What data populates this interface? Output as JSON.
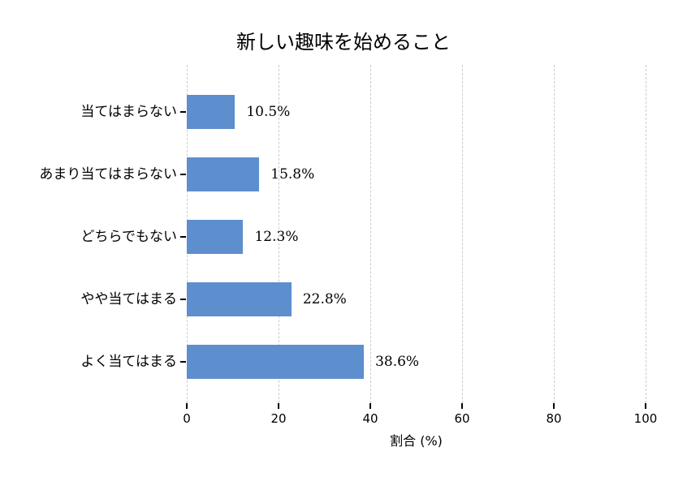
{
  "chart_data": {
    "type": "bar",
    "orientation": "horizontal",
    "title": "新しい趣味を始めること",
    "xlabel": "割合 (%)",
    "ylabel": "",
    "categories": [
      "当てはまらない",
      "あまり当てはまらない",
      "どちらでもない",
      "やや当てはまる",
      "よく当てはまる"
    ],
    "values": [
      10.5,
      15.8,
      12.3,
      22.8,
      38.6
    ],
    "value_labels": [
      "10.5%",
      "15.8%",
      "12.3%",
      "22.8%",
      "38.6%"
    ],
    "xlim": [
      0,
      100
    ],
    "x_ticks": [
      "0",
      "20",
      "40",
      "60",
      "80",
      "100"
    ],
    "grid": "vertical dashed",
    "legend": "none",
    "bar_color": "#5d8ecd",
    "grid_color": "#cccccc",
    "text_color": "#000000",
    "background_color": "#ffffff"
  }
}
